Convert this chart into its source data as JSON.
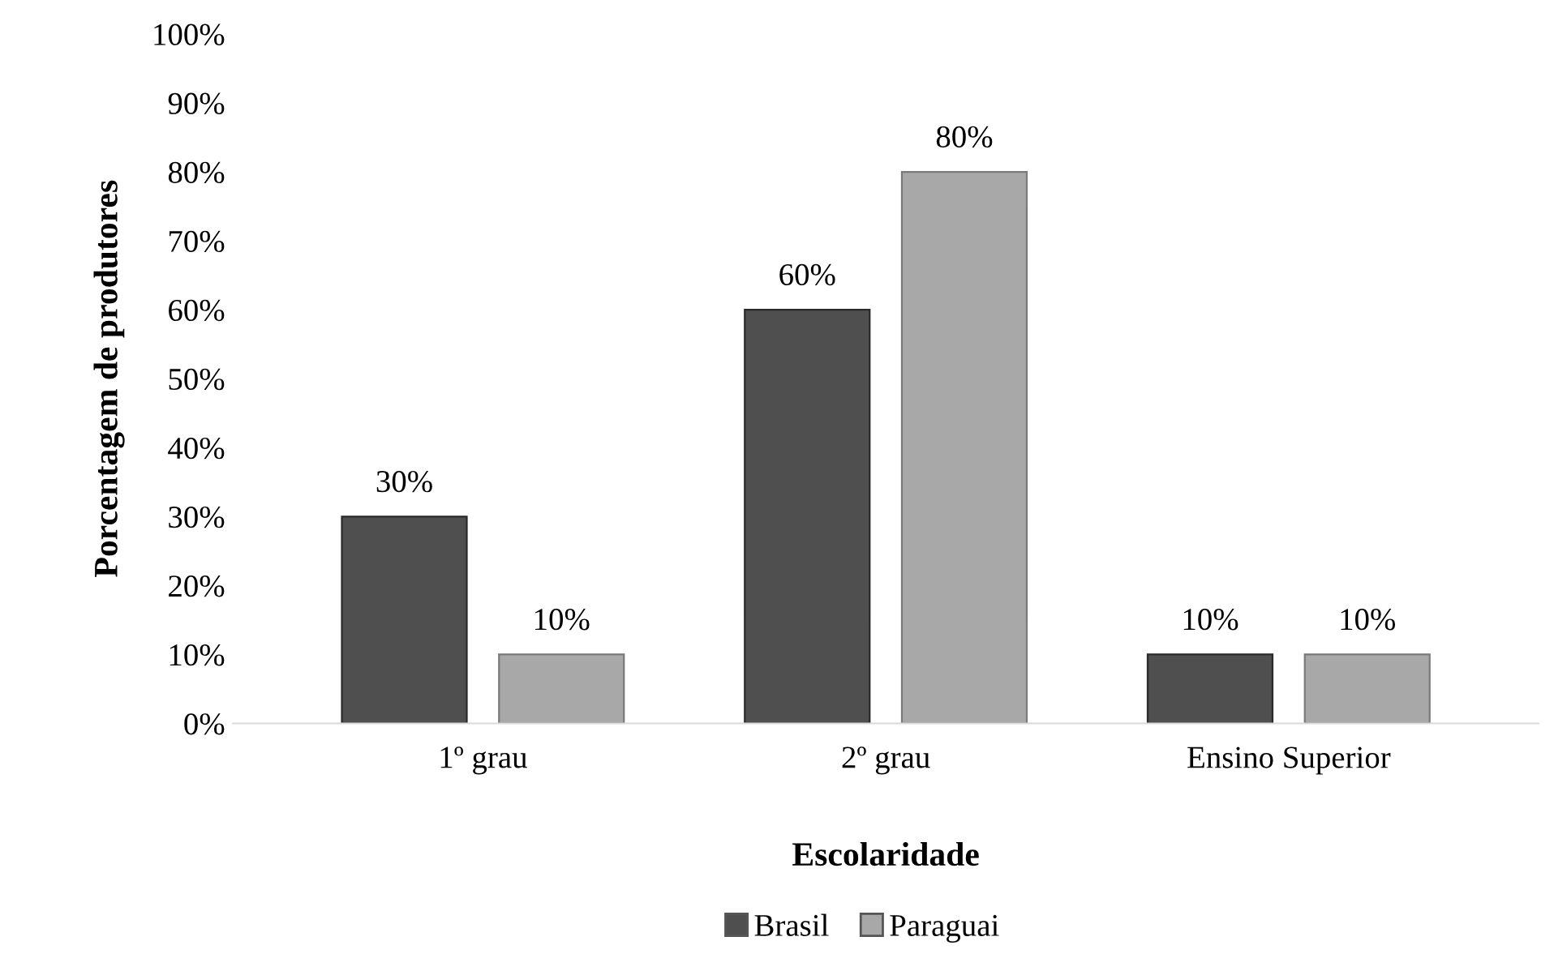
{
  "chart_data": {
    "type": "bar",
    "xlabel": "Escolaridade",
    "ylabel": "Porcentagem de produtores",
    "categories": [
      "1º grau",
      "2º grau",
      "Ensino Superior"
    ],
    "series": [
      {
        "name": "Brasil",
        "color": "#4f4f4f",
        "values": [
          30,
          60,
          10
        ],
        "value_labels": [
          "30%",
          "60%",
          "10%"
        ]
      },
      {
        "name": "Paraguai",
        "color": "#a8a8a8",
        "values": [
          10,
          80,
          10
        ],
        "value_labels": [
          "10%",
          "80%",
          "10%"
        ]
      }
    ],
    "ylim": [
      0,
      100
    ],
    "yticks": [
      {
        "value": 0,
        "label": "0%"
      },
      {
        "value": 10,
        "label": "10%"
      },
      {
        "value": 20,
        "label": "20%"
      },
      {
        "value": 30,
        "label": "30%"
      },
      {
        "value": 40,
        "label": "40%"
      },
      {
        "value": 50,
        "label": "50%"
      },
      {
        "value": 60,
        "label": "60%"
      },
      {
        "value": 70,
        "label": "70%"
      },
      {
        "value": 80,
        "label": "80%"
      },
      {
        "value": 90,
        "label": "90%"
      },
      {
        "value": 100,
        "label": "100%"
      }
    ],
    "grid": false,
    "legend": "bottom"
  }
}
